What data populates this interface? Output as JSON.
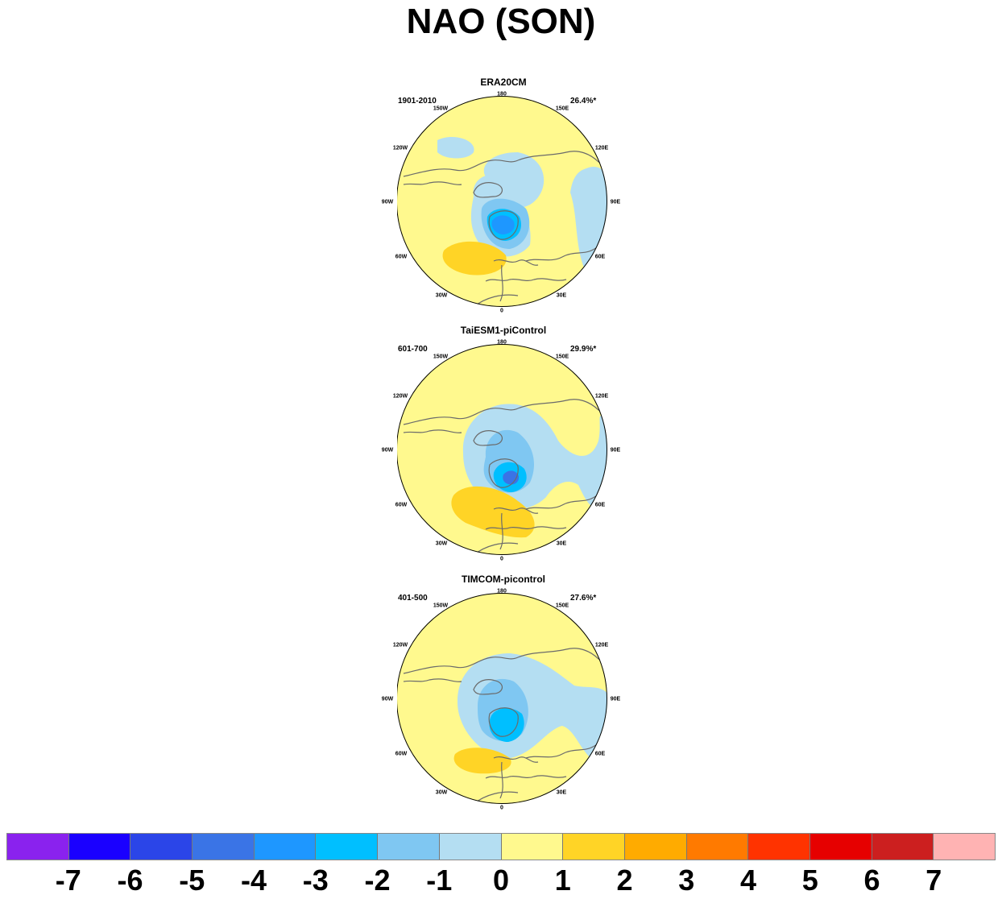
{
  "title": "NAO (SON)",
  "longitude_labels": {
    "l180": "180",
    "l150W": "150W",
    "l150E": "150E",
    "l120W": "120W",
    "l120E": "120E",
    "l90W": "90W",
    "l90E": "90E",
    "l60W": "60W",
    "l60E": "60E",
    "l30W": "30W",
    "l30E": "30E",
    "l0": "0"
  },
  "panels": [
    {
      "model": "ERA20CM",
      "period": "1901-2010",
      "variance": "26.4%*"
    },
    {
      "model": "TaiESM1-piControl",
      "period": "601-700",
      "variance": "29.9%*"
    },
    {
      "model": "TIMCOM-picontrol",
      "period": "401-500",
      "variance": "27.6%*"
    }
  ],
  "colorbar": {
    "labels": [
      "-7",
      "-6",
      "-5",
      "-4",
      "-3",
      "-2",
      "-1",
      "0",
      "1",
      "2",
      "3",
      "4",
      "5",
      "6",
      "7"
    ],
    "colors": [
      "#8a22ee",
      "#1a00ff",
      "#2b45e8",
      "#3a74e6",
      "#1e97ff",
      "#00bfff",
      "#7fc7f2",
      "#b4def2",
      "#fff98e",
      "#ffd426",
      "#ffab00",
      "#ff7a00",
      "#ff3300",
      "#e60000",
      "#cc1f1f",
      "#ffb3b3"
    ]
  },
  "colors": {
    "neutral": "#fff98e",
    "neg1": "#b4def2",
    "neg2": "#7fc7f2",
    "neg3": "#00bfff",
    "neg4": "#1e97ff",
    "neg5": "#3a74e6",
    "pos1": "#ffd426",
    "coast": "#6b6b6b"
  }
}
